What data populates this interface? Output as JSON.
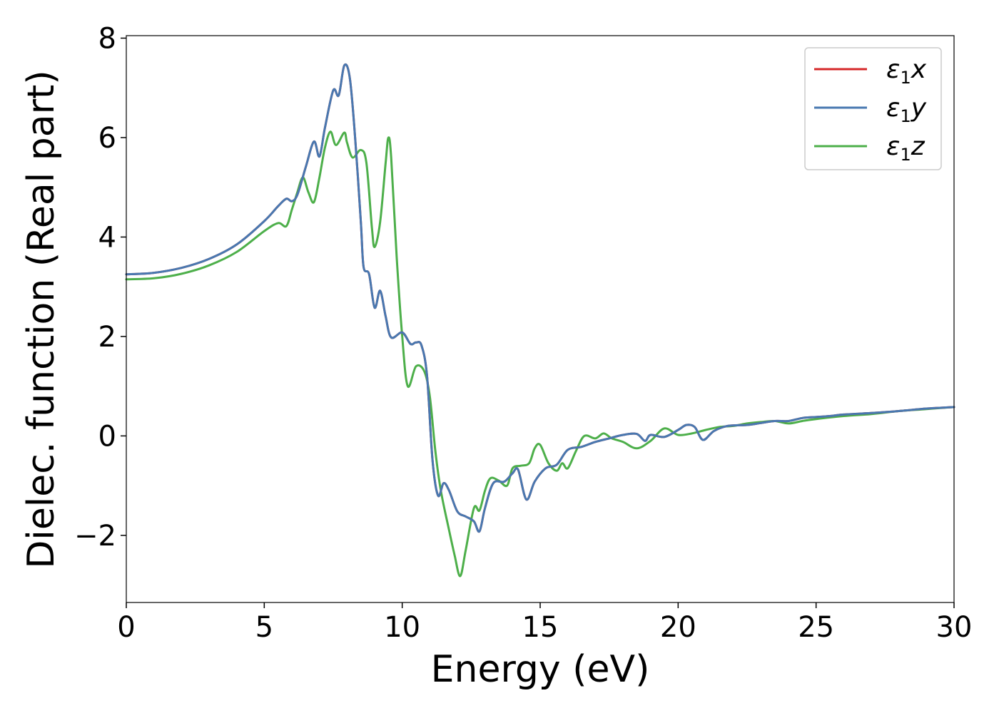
{
  "chart_data": {
    "type": "line",
    "title": "",
    "xlabel": "Energy (eV)",
    "ylabel": "Dielec. function (Real part)",
    "xlim": [
      0,
      30
    ],
    "ylim": [
      -3.35,
      8.05
    ],
    "xticks": [
      0,
      5,
      10,
      15,
      20,
      25,
      30
    ],
    "xtick_labels": [
      "0",
      "5",
      "10",
      "15",
      "20",
      "25",
      "30"
    ],
    "yticks": [
      -2,
      0,
      2,
      4,
      6,
      8
    ],
    "ytick_labels": [
      "−2",
      "0",
      "2",
      "4",
      "6",
      "8"
    ],
    "grid": false,
    "legend_position": "top-right",
    "series": [
      {
        "name": "ε1x",
        "legend_base": "ε",
        "legend_sub": "1",
        "legend_suffix": "x",
        "color": "#d62728",
        "x": [
          0,
          1,
          2,
          3,
          4,
          5,
          5.5,
          5.8,
          6.0,
          6.2,
          6.5,
          6.8,
          7.0,
          7.2,
          7.5,
          7.7,
          7.9,
          8.1,
          8.3,
          8.5,
          8.6,
          8.8,
          9.0,
          9.2,
          9.4,
          9.6,
          10.0,
          10.3,
          10.5,
          10.7,
          10.9,
          11.1,
          11.3,
          11.5,
          11.7,
          12.0,
          12.3,
          12.6,
          12.8,
          13.0,
          13.3,
          13.7,
          14.0,
          14.2,
          14.5,
          14.8,
          15.2,
          15.6,
          16.0,
          16.5,
          17.0,
          17.5,
          18.0,
          18.5,
          18.8,
          19.0,
          19.5,
          20.0,
          20.3,
          20.6,
          20.9,
          21.3,
          21.8,
          22.5,
          23.0,
          23.5,
          24.0,
          24.5,
          25.0,
          25.5,
          26.0,
          27.0,
          28.0,
          29.0,
          30.0
        ],
        "y": [
          3.25,
          3.28,
          3.38,
          3.56,
          3.85,
          4.32,
          4.62,
          4.77,
          4.72,
          4.85,
          5.4,
          5.92,
          5.62,
          6.2,
          6.95,
          6.85,
          7.45,
          7.2,
          5.95,
          4.3,
          3.4,
          3.25,
          2.58,
          2.92,
          2.4,
          1.98,
          2.08,
          1.85,
          1.88,
          1.82,
          1.2,
          -0.5,
          -1.2,
          -0.95,
          -1.1,
          -1.52,
          -1.62,
          -1.72,
          -1.92,
          -1.45,
          -0.95,
          -0.92,
          -0.75,
          -0.68,
          -1.28,
          -0.92,
          -0.65,
          -0.58,
          -0.28,
          -0.22,
          -0.12,
          -0.05,
          0.02,
          0.04,
          -0.1,
          0.02,
          -0.02,
          0.12,
          0.22,
          0.18,
          -0.08,
          0.1,
          0.2,
          0.22,
          0.26,
          0.3,
          0.3,
          0.36,
          0.38,
          0.4,
          0.43,
          0.46,
          0.5,
          0.55,
          0.58
        ]
      },
      {
        "name": "ε1y",
        "legend_base": "ε",
        "legend_sub": "1",
        "legend_suffix": "y",
        "color": "#4878b0",
        "x": [
          0,
          1,
          2,
          3,
          4,
          5,
          5.5,
          5.8,
          6.0,
          6.2,
          6.5,
          6.8,
          7.0,
          7.2,
          7.5,
          7.7,
          7.9,
          8.1,
          8.3,
          8.5,
          8.6,
          8.8,
          9.0,
          9.2,
          9.4,
          9.6,
          10.0,
          10.3,
          10.5,
          10.7,
          10.9,
          11.1,
          11.3,
          11.5,
          11.7,
          12.0,
          12.3,
          12.6,
          12.8,
          13.0,
          13.3,
          13.7,
          14.0,
          14.2,
          14.5,
          14.8,
          15.2,
          15.6,
          16.0,
          16.5,
          17.0,
          17.5,
          18.0,
          18.5,
          18.8,
          19.0,
          19.5,
          20.0,
          20.3,
          20.6,
          20.9,
          21.3,
          21.8,
          22.5,
          23.0,
          23.5,
          24.0,
          24.5,
          25.0,
          25.5,
          26.0,
          27.0,
          28.0,
          29.0,
          30.0
        ],
        "y": [
          3.25,
          3.28,
          3.38,
          3.56,
          3.85,
          4.32,
          4.62,
          4.77,
          4.72,
          4.85,
          5.4,
          5.92,
          5.62,
          6.2,
          6.95,
          6.85,
          7.45,
          7.2,
          5.95,
          4.3,
          3.4,
          3.25,
          2.58,
          2.92,
          2.4,
          1.98,
          2.08,
          1.85,
          1.88,
          1.82,
          1.2,
          -0.5,
          -1.2,
          -0.95,
          -1.1,
          -1.52,
          -1.62,
          -1.72,
          -1.92,
          -1.45,
          -0.95,
          -0.92,
          -0.75,
          -0.68,
          -1.28,
          -0.92,
          -0.65,
          -0.58,
          -0.28,
          -0.22,
          -0.12,
          -0.05,
          0.02,
          0.04,
          -0.1,
          0.02,
          -0.02,
          0.12,
          0.22,
          0.18,
          -0.08,
          0.1,
          0.2,
          0.22,
          0.26,
          0.3,
          0.3,
          0.36,
          0.38,
          0.4,
          0.43,
          0.46,
          0.5,
          0.55,
          0.58
        ]
      },
      {
        "name": "ε1z",
        "legend_base": "ε",
        "legend_sub": "1",
        "legend_suffix": "z",
        "color": "#4daf4a",
        "x": [
          0,
          1,
          2,
          3,
          4,
          5,
          5.5,
          5.8,
          6.0,
          6.2,
          6.4,
          6.6,
          6.8,
          7.0,
          7.2,
          7.4,
          7.6,
          7.9,
          8.0,
          8.2,
          8.5,
          8.7,
          8.9,
          9.0,
          9.2,
          9.4,
          9.5,
          9.6,
          9.8,
          10.0,
          10.2,
          10.5,
          10.8,
          11.0,
          11.2,
          11.4,
          11.7,
          11.9,
          12.1,
          12.3,
          12.6,
          12.8,
          13.0,
          13.2,
          13.5,
          13.8,
          14.0,
          14.3,
          14.6,
          14.8,
          15.0,
          15.3,
          15.6,
          15.8,
          16.0,
          16.3,
          16.6,
          17.0,
          17.3,
          17.6,
          18.0,
          18.5,
          19.0,
          19.5,
          20.0,
          20.5,
          21.0,
          21.5,
          22.0,
          22.5,
          23.0,
          23.5,
          24.0,
          24.5,
          25.0,
          26.0,
          27.0,
          28.0,
          29.0,
          30.0
        ],
        "y": [
          3.15,
          3.17,
          3.26,
          3.43,
          3.7,
          4.12,
          4.28,
          4.22,
          4.55,
          4.9,
          5.2,
          4.9,
          4.7,
          5.2,
          5.8,
          6.12,
          5.85,
          6.1,
          5.9,
          5.6,
          5.75,
          5.5,
          4.2,
          3.8,
          4.3,
          5.5,
          6.0,
          5.6,
          3.6,
          2.0,
          1.0,
          1.4,
          1.3,
          0.8,
          -0.3,
          -1.1,
          -1.9,
          -2.4,
          -2.82,
          -2.3,
          -1.45,
          -1.5,
          -1.1,
          -0.85,
          -0.9,
          -1.0,
          -0.65,
          -0.6,
          -0.55,
          -0.25,
          -0.18,
          -0.55,
          -0.7,
          -0.55,
          -0.65,
          -0.3,
          0.0,
          -0.05,
          0.05,
          -0.05,
          -0.12,
          -0.25,
          -0.1,
          0.15,
          0.02,
          0.05,
          0.12,
          0.18,
          0.2,
          0.25,
          0.28,
          0.3,
          0.25,
          0.3,
          0.34,
          0.4,
          0.44,
          0.5,
          0.54,
          0.58
        ]
      }
    ]
  }
}
